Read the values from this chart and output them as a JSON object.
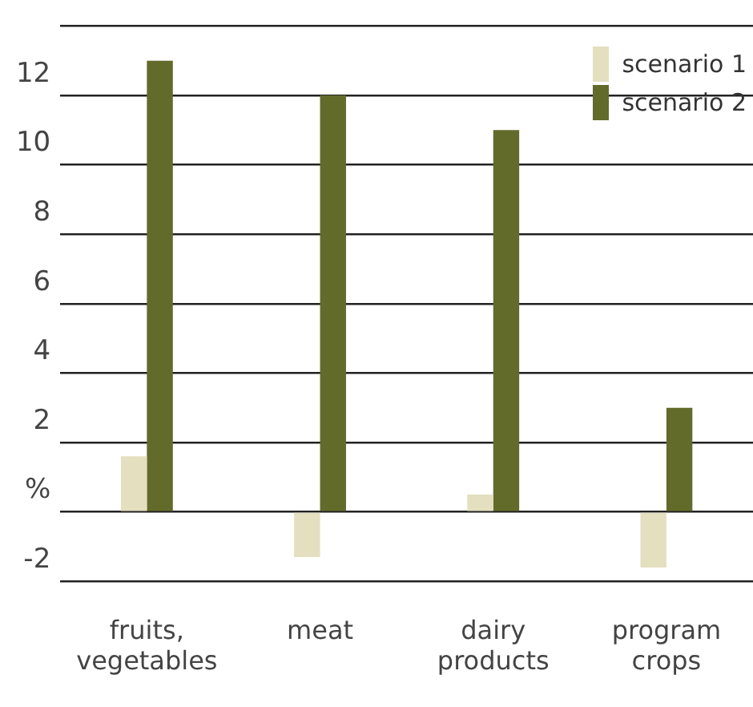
{
  "chart_data": {
    "type": "bar",
    "categories": [
      "fruits, vegetables",
      "meat",
      "dairy products",
      "program crops"
    ],
    "series": [
      {
        "name": "scenario 1",
        "color": "#e3dfbf",
        "values": [
          1.6,
          -1.3,
          0.5,
          -1.6
        ]
      },
      {
        "name": "scenario 2",
        "color": "#636b2b",
        "values": [
          13,
          12,
          11,
          3
        ]
      }
    ],
    "ylim": [
      -2,
      14
    ],
    "yticks": [
      -2,
      {
        "value": 0,
        "label": "%"
      },
      2,
      4,
      6,
      8,
      10,
      12,
      {
        "value": 14,
        "label": null
      }
    ],
    "grid": "y",
    "legend": "top right"
  }
}
